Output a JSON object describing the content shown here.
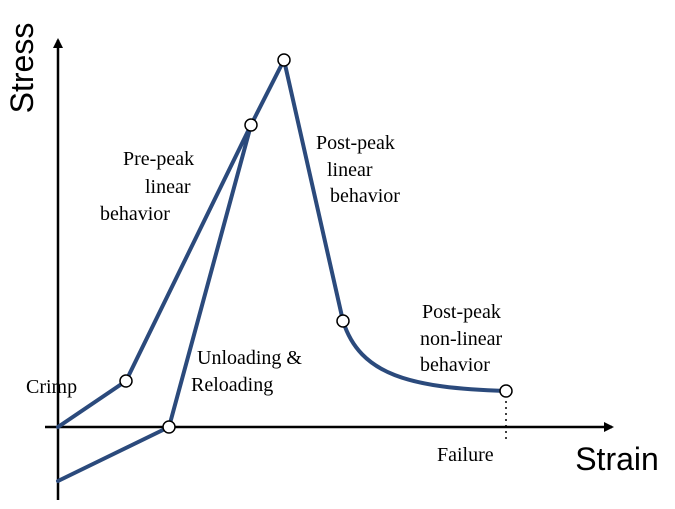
{
  "axes": {
    "y_label": "Stress",
    "x_label": "Strain"
  },
  "labels": {
    "pre_peak": [
      "Pre-peak",
      "linear",
      "behavior"
    ],
    "post_peak_linear": [
      "Post-peak",
      "linear",
      "behavior"
    ],
    "post_peak_nonlinear": [
      "Post-peak",
      "non-linear",
      "behavior"
    ],
    "unloading": [
      "Unloading &",
      "Reloading"
    ],
    "crimp": "Crimp",
    "failure": "Failure"
  }
}
